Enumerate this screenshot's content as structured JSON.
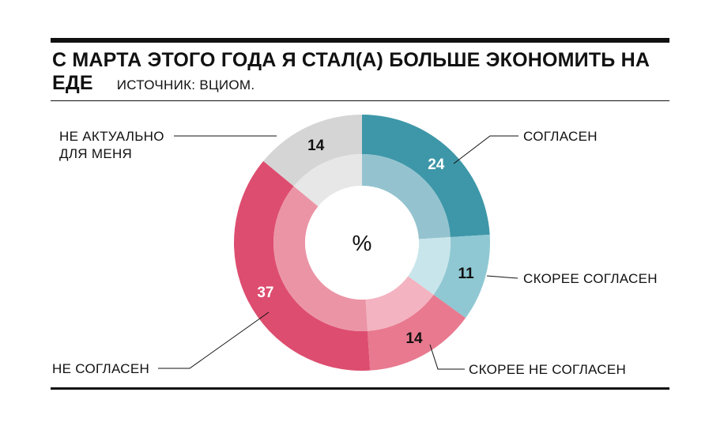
{
  "header": {
    "title": "С МАРТА ЭТОГО ГОДА Я СТАЛ(А) БОЛЬШЕ ЭКОНОМИТЬ НА ЕДЕ",
    "source": "ИСТОЧНИК: ВЦИОМ."
  },
  "chart_data": {
    "type": "pie",
    "title": "С МАРТА ЭТОГО ГОДА Я СТАЛ(А) БОЛЬШЕ ЭКОНОМИТЬ НА ЕДЕ",
    "unit": "%",
    "categories": [
      "СОГЛАСЕН",
      "СКОРЕЕ СОГЛАСЕН",
      "СКОРЕЕ НЕ СОГЛАСЕН",
      "НЕ СОГЛАСЕН",
      "НЕ АКТУАЛЬНО ДЛЯ МЕНЯ"
    ],
    "values": [
      24,
      11,
      14,
      37,
      14
    ],
    "value_labels": [
      "24",
      "11",
      "14",
      "37",
      "14"
    ],
    "colors": [
      "#3e97a8",
      "#8fc8d3",
      "#e8798f",
      "#dd4d6f",
      "#d5d5d5"
    ],
    "inner_colors": [
      "#94c3cf",
      "#c8e5eb",
      "#f3b3c0",
      "#eb94a6",
      "#e7e7e7"
    ],
    "label_colors": [
      "#ffffff",
      "#111111",
      "#111111",
      "#ffffff",
      "#111111"
    ]
  }
}
